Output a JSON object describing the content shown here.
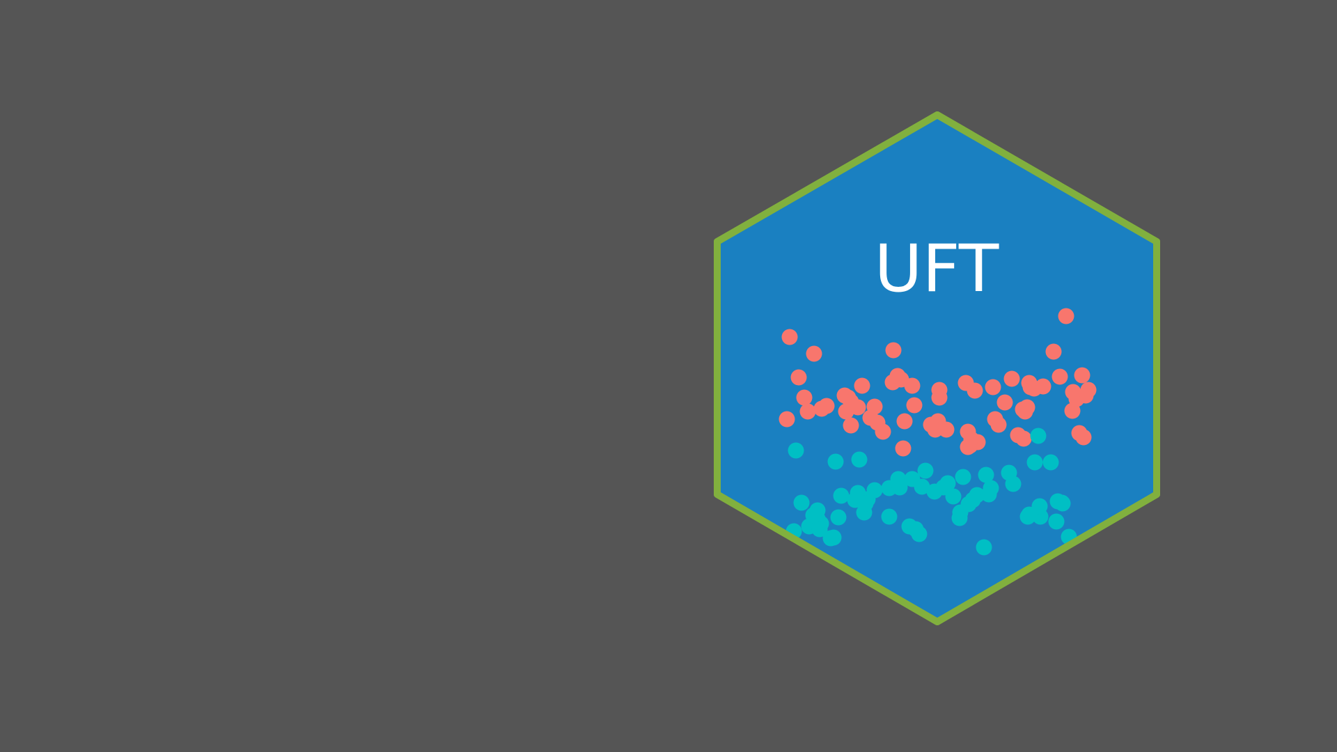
{
  "logo": {
    "title": "UFT",
    "colors": {
      "background": "#555555",
      "hex_fill": "#1a80c1",
      "hex_border": "#81b03e",
      "title": "#ffffff",
      "dots_upper": "#f8766d",
      "dots_lower": "#00bfc4"
    }
  }
}
